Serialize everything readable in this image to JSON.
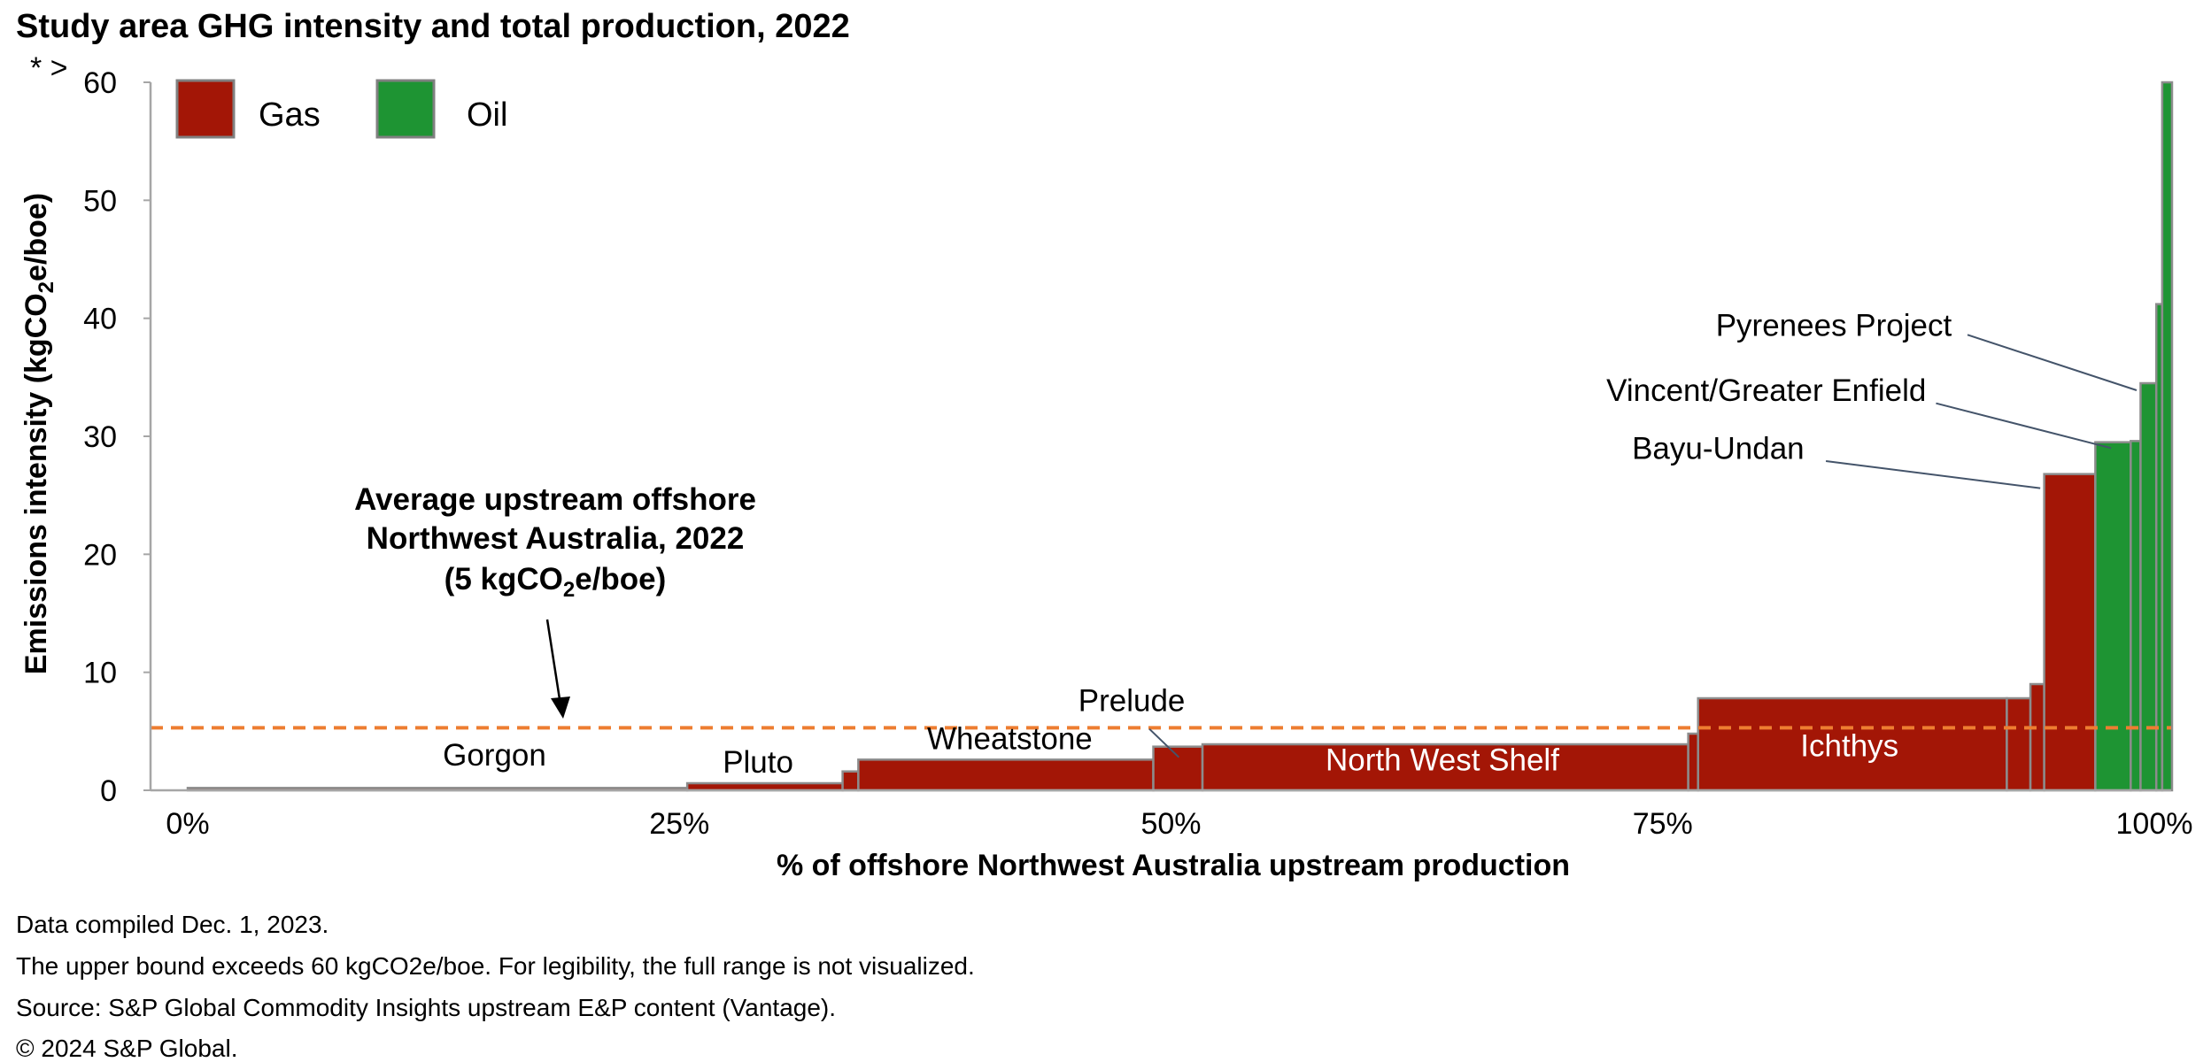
{
  "chart_data": {
    "type": "bar",
    "subtype": "variable-width cost curve",
    "title": "Study area GHG intensity and total production, 2022",
    "xlabel": "% of offshore Northwest Australia upstream production",
    "ylabel": "Emissions intensity (kgCO₂e/boe)",
    "ylabel_parts": [
      "Emissions intensity (kgCO",
      "2",
      "e/boe)"
    ],
    "ylim": [
      0,
      60
    ],
    "xlim": [
      0,
      100
    ],
    "y_ticks": [
      "0",
      "10",
      "20",
      "30",
      "40",
      "50",
      "60"
    ],
    "x_ticks": [
      "0%",
      "25%",
      "50%",
      "75%",
      "100%"
    ],
    "axis_break_label": "* >",
    "legend": [
      {
        "name": "Gas",
        "color": "#a31606"
      },
      {
        "name": "Oil",
        "color": "#1e9433"
      }
    ],
    "segments": [
      {
        "label": "Gorgon",
        "type": "gas",
        "start": 0.0,
        "end": 25.4,
        "value": 0.2
      },
      {
        "label": "Pluto",
        "type": "gas",
        "start": 25.4,
        "end": 33.3,
        "value": 0.6
      },
      {
        "label": "",
        "type": "gas",
        "start": 33.3,
        "end": 34.1,
        "value": 1.6
      },
      {
        "label": "Wheatstone",
        "type": "gas",
        "start": 34.1,
        "end": 49.1,
        "value": 2.6
      },
      {
        "label": "Prelude",
        "type": "gas",
        "start": 49.1,
        "end": 51.6,
        "value": 3.7
      },
      {
        "label": "North West Shelf",
        "type": "gas",
        "start": 51.6,
        "end": 76.3,
        "value": 3.9
      },
      {
        "label": "",
        "type": "gas",
        "start": 76.3,
        "end": 76.8,
        "value": 4.8
      },
      {
        "label": "Ichthys",
        "type": "gas",
        "start": 76.8,
        "end": 92.5,
        "value": 7.8
      },
      {
        "label": "",
        "type": "gas",
        "start": 92.5,
        "end": 93.7,
        "value": 7.8
      },
      {
        "label": "",
        "type": "gas",
        "start": 93.7,
        "end": 94.4,
        "value": 9.0
      },
      {
        "label": "Bayu-Undan",
        "type": "gas",
        "start": 94.4,
        "end": 97.0,
        "value": 26.8
      },
      {
        "label": "Vincent/Greater Enfield",
        "type": "oil",
        "start": 97.0,
        "end": 98.8,
        "value": 29.5
      },
      {
        "label": "",
        "type": "oil",
        "start": 98.8,
        "end": 99.3,
        "value": 29.6
      },
      {
        "label": "Pyrenees Project",
        "type": "oil",
        "start": 99.3,
        "end": 100.1,
        "value": 34.5
      },
      {
        "label": "",
        "type": "oil",
        "start": 100.1,
        "end": 100.4,
        "value": 41.2
      },
      {
        "label": "",
        "type": "oil",
        "start": 100.4,
        "end": 100.9,
        "value": 60
      }
    ],
    "average": {
      "value": 5.3,
      "color": "#ed7d31",
      "label_lines": [
        "Average upstream offshore",
        "Northwest Australia, 2022"
      ],
      "label_value_parts": [
        "(5 kgCO",
        "2",
        "e/boe)"
      ]
    },
    "bar_labels": [
      {
        "text": "Gorgon",
        "x": 15.6,
        "y": 2.1,
        "color": "dark"
      },
      {
        "text": "Pluto",
        "x": 29.0,
        "y": 1.5,
        "color": "dark"
      },
      {
        "text": "Wheatstone",
        "x": 41.8,
        "y": 3.5,
        "color": "dark"
      },
      {
        "text": "Prelude",
        "x": 48.0,
        "y": 6.7,
        "color": "dark"
      },
      {
        "text": "North West Shelf",
        "x": 63.8,
        "y": 1.7,
        "color": "light"
      },
      {
        "text": "Ichthys",
        "x": 84.5,
        "y": 2.9,
        "color": "light"
      }
    ],
    "callouts": [
      {
        "text": "Pyrenees Project",
        "tx": 89.7,
        "ty": 38.5,
        "lx1": 90.5,
        "ly1": 38.6,
        "lx2": 99.1,
        "ly2": 33.9
      },
      {
        "text": "Vincent/Greater Enfield",
        "tx": 88.4,
        "ty": 33.0,
        "lx1": 88.9,
        "ly1": 32.8,
        "lx2": 97.8,
        "ly2": 29.0
      },
      {
        "text": "Bayu-Undan",
        "tx": 82.2,
        "ty": 28.1,
        "lx1": 83.3,
        "ly1": 27.9,
        "lx2": 94.2,
        "ly2": 25.6
      }
    ],
    "prelude_leader": {
      "x1": 48.9,
      "y1": 5.2,
      "x2": 50.4,
      "y2": 2.8
    }
  },
  "footnotes": [
    "Data compiled Dec. 1, 2023.",
    "The upper bound exceeds 60 kgCO2e/boe. For legibility, the full range is not visualized.",
    "Source: S&P Global Commodity Insights upstream E&P content (Vantage).",
    "© 2024 S&P Global."
  ]
}
